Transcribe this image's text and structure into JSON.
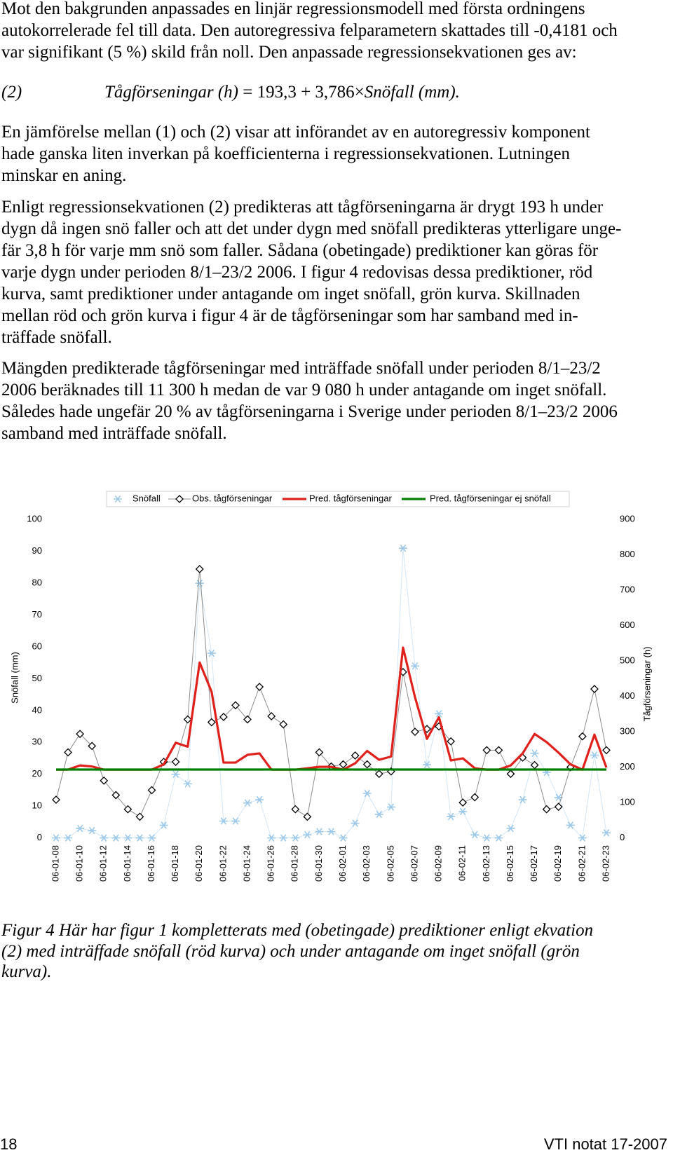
{
  "paragraphs": [
    {
      "lines": [
        "Mot den bakgrunden anpassades en linjär regressionsmodell med första ordningens",
        "autokorrelerade fel till data. Den autoregressiva felparametern skattades till -0,4181 och",
        "var signifikant (5 %) skild från noll. Den anpassade regressionsekvationen ges av:"
      ]
    },
    {
      "lines": [
        "En jämförelse mellan (1) och (2) visar att införandet av en autoregressiv komponent",
        "hade ganska liten inverkan på koefficienterna i regressionsekvationen. Lutningen",
        "minskar en aning."
      ]
    },
    {
      "lines": [
        "Enligt regressionsekvationen (2) predikteras att tågförseningarna är drygt 193 h under",
        "dygn då ingen snö faller och att det under dygn med snöfall predikteras ytterligare unge-",
        "fär 3,8 h för varje mm snö som faller. Sådana (obetingade) prediktioner kan göras för",
        "varje dygn under perioden 8/1–23/2 2006. I figur 4 redovisas dessa prediktioner, röd",
        "kurva, samt prediktioner under antagande om inget snöfall, grön kurva. Skillnaden",
        "mellan röd och grön kurva i figur 4 är de tågförseningar som har samband med in-",
        "träffade snöfall."
      ]
    },
    {
      "lines": [
        "Mängden predikterade tågförseningar med inträffade snöfall under perioden 8/1–23/2",
        "2006 beräknades till 11 300 h medan de var 9 080 h under antagande om inget snöfall.",
        "Således hade ungefär 20 % av tågförseningarna i Sverige under perioden 8/1–23/2 2006",
        "samband med inträffade snöfall."
      ]
    }
  ],
  "equation": {
    "number": "(2)",
    "lhs": "Tågförseningar (h)",
    "operator": " = 193,3 + 3,786×",
    "rhs": "Snöfall (mm)."
  },
  "chart_data": {
    "type": "line",
    "y_label": "Snöfall (mm)",
    "y2_label": "Tågförseningar (h)",
    "ylim": [
      0,
      100
    ],
    "yticks": [
      0,
      10,
      20,
      30,
      40,
      50,
      60,
      70,
      80,
      90,
      100
    ],
    "y2lim": [
      0,
      900
    ],
    "y2ticks": [
      0,
      100,
      200,
      300,
      400,
      500,
      600,
      700,
      800,
      900
    ],
    "grid": false,
    "legend": "top",
    "categories": [
      "06-01-08",
      null,
      "06-01-10",
      null,
      "06-01-12",
      null,
      "06-01-14",
      null,
      "06-01-16",
      null,
      "06-01-18",
      null,
      "06-01-20",
      null,
      "06-01-22",
      null,
      "06-01-24",
      null,
      "06-01-26",
      null,
      "06-01-28",
      null,
      "06-01-30",
      null,
      "06-02-01",
      null,
      "06-02-03",
      null,
      "06-02-05",
      null,
      "06-02-07",
      null,
      "06-02-09",
      null,
      "06-02-11",
      null,
      "06-02-13",
      null,
      "06-02-15",
      null,
      "06-02-17",
      null,
      "06-02-19",
      null,
      "06-02-21",
      null,
      "06-02-23"
    ],
    "series": [
      {
        "name": "Snöfall",
        "color": "#9cc8ea",
        "marker": "asterisk",
        "values": [
          0,
          0,
          3,
          2.3,
          0,
          0,
          0,
          0,
          0,
          4,
          20,
          17,
          80,
          58,
          5.3,
          5.3,
          11,
          12,
          0,
          0,
          0,
          1,
          2,
          2,
          0,
          4.6,
          14,
          7.4,
          9.7,
          91,
          54,
          23,
          39,
          6.7,
          8.3,
          1,
          0,
          0,
          3,
          12,
          26.6,
          20.6,
          12.7,
          4,
          0,
          26,
          1.6
        ]
      },
      {
        "name": "Obs. tågförseningar",
        "color": "#000000",
        "marker": "diamond",
        "axis": "y2",
        "values": [
          108,
          242,
          294,
          260,
          162,
          121,
          81,
          60,
          135,
          215,
          215,
          335,
          760,
          327,
          342,
          375,
          335,
          427,
          344,
          321,
          81,
          60,
          242,
          202,
          208,
          233,
          208,
          181,
          188,
          469,
          300,
          308,
          315,
          273,
          100,
          115,
          248,
          248,
          181,
          227,
          206,
          81,
          88,
          200,
          287,
          421,
          248
        ]
      },
      {
        "name": "Pred. tågförseningar",
        "color": "#e0201b",
        "marker": "none",
        "axis": "y2",
        "values": [
          193,
          193,
          205,
          202,
          193,
          193,
          193,
          193,
          193,
          208,
          269,
          258,
          496,
          413,
          213,
          213,
          235,
          239,
          193,
          193,
          193,
          197,
          201,
          201,
          193,
          211,
          246,
          221,
          230,
          538,
          398,
          280,
          341,
          219,
          225,
          197,
          193,
          193,
          205,
          239,
          294,
          271,
          241,
          208,
          193,
          292,
          199
        ]
      },
      {
        "name": "Pred. tågförseningar ej snöfall",
        "color": "#008000",
        "marker": "none",
        "axis": "y2",
        "values": [
          193.3,
          193.3,
          193.3,
          193.3,
          193.3,
          193.3,
          193.3,
          193.3,
          193.3,
          193.3,
          193.3,
          193.3,
          193.3,
          193.3,
          193.3,
          193.3,
          193.3,
          193.3,
          193.3,
          193.3,
          193.3,
          193.3,
          193.3,
          193.3,
          193.3,
          193.3,
          193.3,
          193.3,
          193.3,
          193.3,
          193.3,
          193.3,
          193.3,
          193.3,
          193.3,
          193.3,
          193.3,
          193.3,
          193.3,
          193.3,
          193.3,
          193.3,
          193.3,
          193.3,
          193.3,
          193.3,
          193.3
        ]
      }
    ]
  },
  "caption": {
    "lines": [
      "Figur 4  Här har figur 1 kompletterats med (obetingade) prediktioner enligt ekvation",
      "(2) med inträffade snöfall (röd kurva) och under antagande om inget snöfall (grön",
      "kurva)."
    ]
  },
  "footer": {
    "page": "18",
    "publication": "VTI notat 17-2007"
  }
}
